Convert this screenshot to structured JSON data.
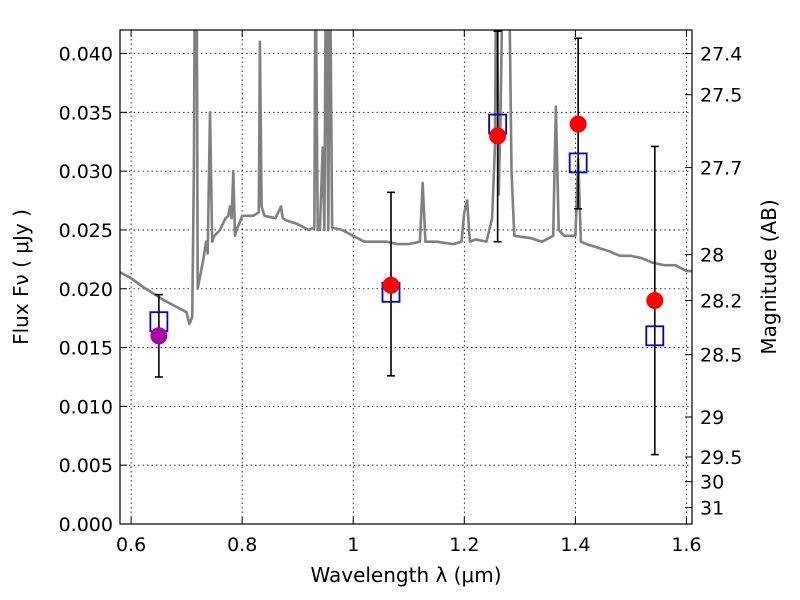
{
  "chart_data": {
    "type": "scatter",
    "title": "",
    "xlabel": "Wavelength  λ (μm)",
    "ylabel": "Flux  Fν  ( μJy )",
    "ylabel_right": "Magnitude (AB)",
    "xlim": [
      0.58,
      1.61
    ],
    "ylim": [
      0.0,
      0.042
    ],
    "grid": true,
    "x_ticks": [
      {
        "value": 0.6,
        "label": "0.6"
      },
      {
        "value": 0.8,
        "label": "0.8"
      },
      {
        "value": 1.0,
        "label": "1"
      },
      {
        "value": 1.2,
        "label": "1.2"
      },
      {
        "value": 1.4,
        "label": "1.4"
      },
      {
        "value": 1.6,
        "label": "1.6"
      }
    ],
    "y_ticks": [
      {
        "value": 0.0,
        "label": "0.000"
      },
      {
        "value": 0.005,
        "label": "0.005"
      },
      {
        "value": 0.01,
        "label": "0.010"
      },
      {
        "value": 0.015,
        "label": "0.015"
      },
      {
        "value": 0.02,
        "label": "0.020"
      },
      {
        "value": 0.025,
        "label": "0.025"
      },
      {
        "value": 0.03,
        "label": "0.030"
      },
      {
        "value": 0.035,
        "label": "0.035"
      },
      {
        "value": 0.04,
        "label": "0.040"
      }
    ],
    "right_ticks": [
      {
        "flux": 0.04,
        "label": "27.4"
      },
      {
        "flux": 0.0365,
        "label": "27.5"
      },
      {
        "flux": 0.0303,
        "label": "27.7"
      },
      {
        "flux": 0.0229,
        "label": "28"
      },
      {
        "flux": 0.019,
        "label": "28.2"
      },
      {
        "flux": 0.0144,
        "label": "28.5"
      },
      {
        "flux": 0.0091,
        "label": "29"
      },
      {
        "flux": 0.0057,
        "label": "29.5"
      },
      {
        "flux": 0.0036,
        "label": "30"
      },
      {
        "flux": 0.0014,
        "label": "31"
      }
    ],
    "series": [
      {
        "kind": "model-spectrum",
        "color": "#808080",
        "points": [
          [
            0.58,
            0.0214
          ],
          [
            0.6,
            0.0209
          ],
          [
            0.62,
            0.0202
          ],
          [
            0.64,
            0.0196
          ],
          [
            0.66,
            0.019
          ],
          [
            0.68,
            0.0185
          ],
          [
            0.7,
            0.018
          ],
          [
            0.705,
            0.017
          ],
          [
            0.71,
            0.0176
          ],
          [
            0.713,
            0.03
          ],
          [
            0.715,
            0.05
          ],
          [
            0.718,
            0.05
          ],
          [
            0.72,
            0.02
          ],
          [
            0.73,
            0.0225
          ],
          [
            0.735,
            0.024
          ],
          [
            0.738,
            0.023
          ],
          [
            0.742,
            0.035
          ],
          [
            0.746,
            0.024
          ],
          [
            0.75,
            0.0245
          ],
          [
            0.76,
            0.025
          ],
          [
            0.77,
            0.026
          ],
          [
            0.775,
            0.0262
          ],
          [
            0.778,
            0.027
          ],
          [
            0.781,
            0.026
          ],
          [
            0.784,
            0.03
          ],
          [
            0.787,
            0.0245
          ],
          [
            0.79,
            0.025
          ],
          [
            0.8,
            0.0262
          ],
          [
            0.82,
            0.0262
          ],
          [
            0.83,
            0.0265
          ],
          [
            0.832,
            0.041
          ],
          [
            0.835,
            0.027
          ],
          [
            0.84,
            0.0262
          ],
          [
            0.86,
            0.026
          ],
          [
            0.87,
            0.027
          ],
          [
            0.873,
            0.026
          ],
          [
            0.88,
            0.0258
          ],
          [
            0.9,
            0.0255
          ],
          [
            0.92,
            0.025
          ],
          [
            0.93,
            0.0252
          ],
          [
            0.932,
            0.05
          ],
          [
            0.936,
            0.025
          ],
          [
            0.94,
            0.025
          ],
          [
            0.945,
            0.032
          ],
          [
            0.948,
            0.025
          ],
          [
            0.951,
            0.05
          ],
          [
            0.955,
            0.025
          ],
          [
            0.958,
            0.05
          ],
          [
            0.962,
            0.0252
          ],
          [
            0.98,
            0.025
          ],
          [
            1.0,
            0.0245
          ],
          [
            1.02,
            0.024
          ],
          [
            1.04,
            0.024
          ],
          [
            1.06,
            0.024
          ],
          [
            1.08,
            0.0238
          ],
          [
            1.1,
            0.0238
          ],
          [
            1.12,
            0.024
          ],
          [
            1.125,
            0.029
          ],
          [
            1.13,
            0.024
          ],
          [
            1.15,
            0.024
          ],
          [
            1.18,
            0.0238
          ],
          [
            1.195,
            0.024
          ],
          [
            1.2,
            0.0265
          ],
          [
            1.205,
            0.0275
          ],
          [
            1.21,
            0.024
          ],
          [
            1.22,
            0.0242
          ],
          [
            1.24,
            0.024
          ],
          [
            1.25,
            0.026
          ],
          [
            1.255,
            0.032
          ],
          [
            1.258,
            0.05
          ],
          [
            1.262,
            0.028
          ],
          [
            1.265,
            0.034
          ],
          [
            1.27,
            0.05
          ],
          [
            1.28,
            0.05
          ],
          [
            1.285,
            0.03
          ],
          [
            1.29,
            0.0245
          ],
          [
            1.32,
            0.0243
          ],
          [
            1.34,
            0.024
          ],
          [
            1.36,
            0.0245
          ],
          [
            1.365,
            0.0355
          ],
          [
            1.37,
            0.025
          ],
          [
            1.38,
            0.0245
          ],
          [
            1.4,
            0.0245
          ],
          [
            1.405,
            0.031
          ],
          [
            1.41,
            0.024
          ],
          [
            1.42,
            0.0238
          ],
          [
            1.44,
            0.0235
          ],
          [
            1.46,
            0.0232
          ],
          [
            1.48,
            0.0228
          ],
          [
            1.5,
            0.0228
          ],
          [
            1.52,
            0.0226
          ],
          [
            1.54,
            0.0222
          ],
          [
            1.56,
            0.022
          ],
          [
            1.58,
            0.022
          ],
          [
            1.6,
            0.0215
          ],
          [
            1.61,
            0.0215
          ]
        ]
      },
      {
        "kind": "model-photometry",
        "color": "#0000cc",
        "marker": "open-square",
        "points": [
          [
            0.65,
            0.0172
          ],
          [
            1.068,
            0.0197
          ],
          [
            1.26,
            0.034
          ],
          [
            1.405,
            0.0307
          ],
          [
            1.543,
            0.016
          ]
        ]
      },
      {
        "kind": "observed-photometry",
        "markers": [
          {
            "x": 0.65,
            "y": 0.016,
            "color": "#aa00aa",
            "err_low": 0.0125,
            "err_high": 0.0195
          },
          {
            "x": 1.068,
            "y": 0.0203,
            "color": "#ff0000",
            "err_low": 0.0126,
            "err_high": 0.0282
          },
          {
            "x": 1.26,
            "y": 0.033,
            "color": "#ff0000",
            "err_low": 0.024,
            "err_high": 0.0419
          },
          {
            "x": 1.405,
            "y": 0.034,
            "color": "#ff0000",
            "err_low": 0.0268,
            "err_high": 0.0413
          },
          {
            "x": 1.543,
            "y": 0.019,
            "color": "#ff0000",
            "err_low": 0.0059,
            "err_high": 0.0321
          }
        ]
      }
    ]
  }
}
